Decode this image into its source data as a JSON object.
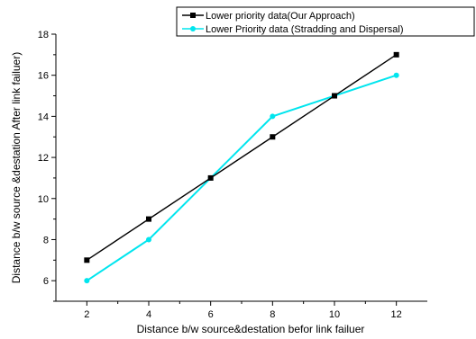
{
  "chart_data": {
    "type": "line",
    "xlabel": "Distance b/w source&destation befor link failuer",
    "ylabel": "Distance b/w source &destation After link failuer)",
    "xlim": [
      1,
      13
    ],
    "ylim": [
      5,
      18
    ],
    "xticks": [
      2,
      4,
      6,
      8,
      10,
      12
    ],
    "yticks": [
      6,
      8,
      10,
      12,
      14,
      16,
      18
    ],
    "grid": false,
    "legend_position": "top-right",
    "series": [
      {
        "name": "Lower priority data(Our Approach)",
        "color": "#000000",
        "marker": "square",
        "x": [
          2,
          4,
          6,
          8,
          10,
          12
        ],
        "y": [
          7,
          9,
          11,
          13,
          15,
          17
        ]
      },
      {
        "name": "Lower Priority data (Stradding and Dispersal)",
        "color": "#00e5ee",
        "marker": "circle",
        "x": [
          2,
          4,
          6,
          8,
          10,
          12
        ],
        "y": [
          6,
          8,
          11,
          14,
          15,
          16
        ]
      }
    ]
  }
}
